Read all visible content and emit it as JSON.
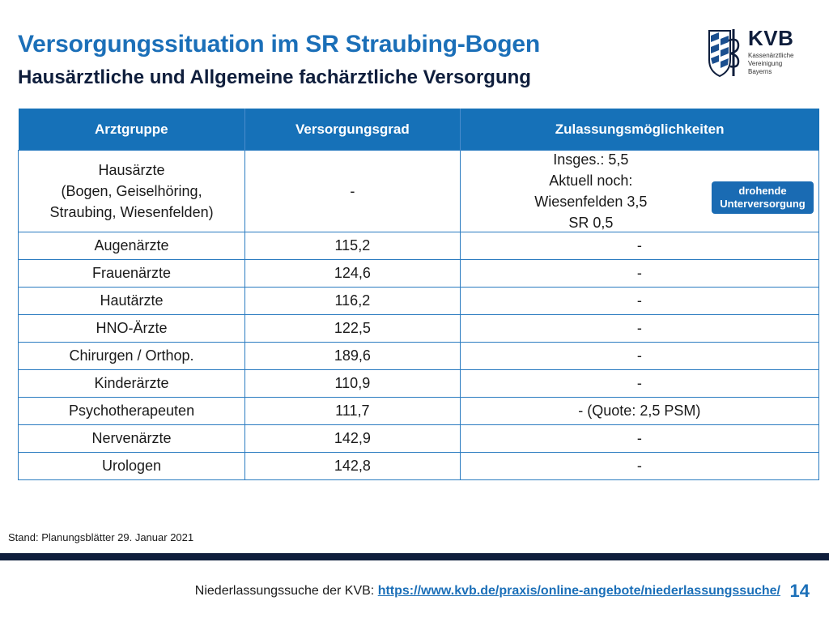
{
  "header": {
    "title": "Versorgungssituation im SR Straubing-Bogen",
    "subtitle": "Hausärztliche und Allgemeine fachärztliche Versorgung"
  },
  "logo": {
    "brand": "KVB",
    "line1": "Kassenärztliche",
    "line2": "Vereinigung",
    "line3": "Bayerns"
  },
  "table": {
    "headers": [
      "Arztgruppe",
      "Versorgungsgrad",
      "Zulassungsmöglichkeiten"
    ],
    "first_row": {
      "group_lines": [
        "Hausärzte",
        "(Bogen, Geiselhöring,",
        "Straubing, Wiesenfelden)"
      ],
      "grade": "-",
      "zul_lines": [
        "Insges.: 5,5",
        "Aktuell noch:",
        "Wiesenfelden 3,5",
        "SR 0,5"
      ],
      "badge_line1": "drohende",
      "badge_line2": "Unterversorgung"
    },
    "rows": [
      {
        "group": "Augenärzte",
        "grade": "115,2",
        "zul": "-"
      },
      {
        "group": "Frauenärzte",
        "grade": "124,6",
        "zul": "-"
      },
      {
        "group": "Hautärzte",
        "grade": "116,2",
        "zul": "-"
      },
      {
        "group": "HNO-Ärzte",
        "grade": "122,5",
        "zul": "-"
      },
      {
        "group": "Chirurgen / Orthop.",
        "grade": "189,6",
        "zul": "-"
      },
      {
        "group": "Kinderärzte",
        "grade": "110,9",
        "zul": "-"
      },
      {
        "group": "Psychotherapeuten",
        "grade": "111,7",
        "zul": "- (Quote: 2,5 PSM)"
      },
      {
        "group": "Nervenärzte",
        "grade": "142,9",
        "zul": "-"
      },
      {
        "group": "Urologen",
        "grade": "142,8",
        "zul": "-"
      }
    ]
  },
  "stand": "Stand: Planungsblätter 29. Januar 2021",
  "footer": {
    "label": "Niederlassungssuche der KVB: ",
    "link": "https://www.kvb.de/praxis/online-angebote/niederlassungssuche/",
    "page": "14"
  },
  "colors": {
    "accent": "#1b6fb8",
    "header_bg": "#1671b8",
    "dark": "#0f1e3c"
  }
}
